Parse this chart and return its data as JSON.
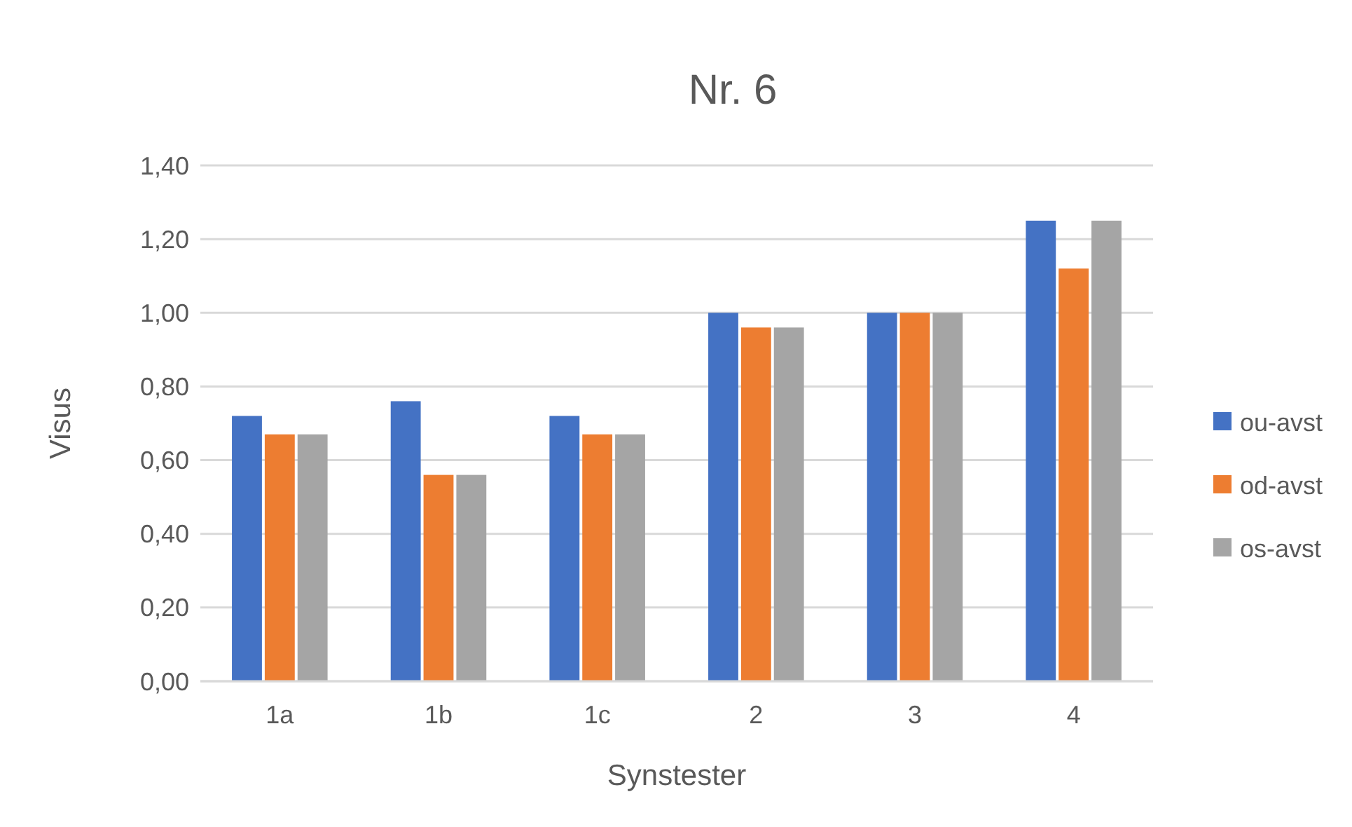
{
  "chart_data": {
    "type": "bar",
    "title": "Nr. 6",
    "xlabel": "Synstester",
    "ylabel": "Visus",
    "categories": [
      "1a",
      "1b",
      "1c",
      "2",
      "3",
      "4"
    ],
    "series": [
      {
        "name": "ou-avst",
        "color": "#4472c4",
        "values": [
          0.72,
          0.76,
          0.72,
          1.0,
          1.0,
          1.25
        ]
      },
      {
        "name": "od-avst",
        "color": "#ed7d31",
        "values": [
          0.67,
          0.56,
          0.67,
          0.96,
          1.0,
          1.12
        ]
      },
      {
        "name": "os-avst",
        "color": "#a5a5a5",
        "values": [
          0.67,
          0.56,
          0.67,
          0.96,
          1.0,
          1.25
        ]
      }
    ],
    "ylim": [
      0,
      1.4
    ],
    "yticks": [
      {
        "value": 0,
        "label": "0,00"
      },
      {
        "value": 0.2,
        "label": "0,20"
      },
      {
        "value": 0.4,
        "label": "0,40"
      },
      {
        "value": 0.6,
        "label": "0,60"
      },
      {
        "value": 0.8,
        "label": "0,80"
      },
      {
        "value": 1.0,
        "label": "1,00"
      },
      {
        "value": 1.2,
        "label": "1,20"
      },
      {
        "value": 1.4,
        "label": "1,40"
      }
    ],
    "grid": "y",
    "legend": "right"
  }
}
